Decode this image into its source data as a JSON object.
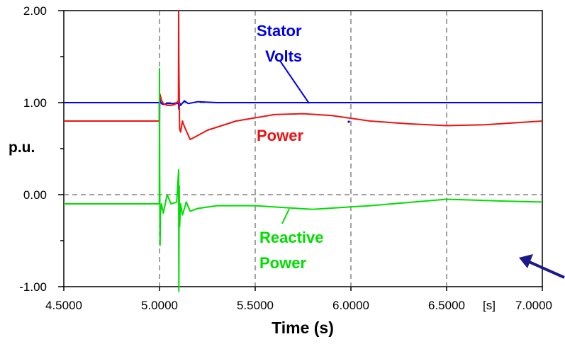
{
  "chart_data": {
    "type": "line",
    "title": "",
    "xlabel": "Time (s)",
    "ylabel": "p.u.",
    "x_unit_label": "[s]",
    "xlim": [
      4.5,
      7.0
    ],
    "ylim": [
      -1.0,
      2.0
    ],
    "grid": true,
    "x_ticks": [
      {
        "value": 4.5,
        "label": "4.5000"
      },
      {
        "value": 5.0,
        "label": "5.0000"
      },
      {
        "value": 5.5,
        "label": "5.5000"
      },
      {
        "value": 6.0,
        "label": "6.0000"
      },
      {
        "value": 6.5,
        "label": "6.5000"
      },
      {
        "value": 7.0,
        "label": "7.0000"
      }
    ],
    "y_ticks": [
      {
        "value": -1.0,
        "label": "-1.00"
      },
      {
        "value": 0.0,
        "label": "0.00"
      },
      {
        "value": 1.0,
        "label": "1.00"
      },
      {
        "value": 2.0,
        "label": "2.00"
      }
    ],
    "y_minor_ticks": [
      -0.5,
      0.5,
      1.5
    ],
    "series": [
      {
        "name": "Stator Volts",
        "color": "#0000ee",
        "x": [
          4.5,
          4.999,
          5.0,
          5.001,
          5.005,
          5.01,
          5.02,
          5.04,
          5.06,
          5.08,
          5.1,
          5.101,
          5.105,
          5.11,
          5.13,
          5.15,
          5.2,
          5.3,
          5.5,
          6.0,
          6.5,
          7.0
        ],
        "y": [
          1.0,
          1.0,
          0.75,
          1.04,
          1.01,
          0.99,
          0.98,
          0.99,
          0.99,
          0.99,
          0.99,
          0.93,
          1.0,
          0.97,
          1.02,
          0.99,
          1.01,
          1.0,
          1.0,
          1.0,
          1.0,
          1.0
        ]
      },
      {
        "name": "Power",
        "color": "#ee1111",
        "x": [
          4.5,
          4.999,
          5.0,
          5.003,
          5.01,
          5.02,
          5.04,
          5.06,
          5.08,
          5.099,
          5.1,
          5.101,
          5.105,
          5.11,
          5.12,
          5.13,
          5.16,
          5.18,
          5.25,
          5.4,
          5.6,
          5.75,
          5.9,
          6.1,
          6.3,
          6.5,
          6.7,
          6.85,
          7.0
        ],
        "y": [
          0.8,
          0.8,
          1.0,
          1.09,
          1.03,
          0.99,
          0.97,
          0.97,
          0.98,
          1.02,
          2.0,
          1.45,
          0.72,
          0.68,
          0.8,
          0.74,
          0.6,
          0.62,
          0.7,
          0.8,
          0.87,
          0.88,
          0.86,
          0.8,
          0.77,
          0.75,
          0.76,
          0.78,
          0.8
        ]
      },
      {
        "name": "Reactive Power",
        "color": "#00dd00",
        "x": [
          4.5,
          4.999,
          5.0,
          5.001,
          5.003,
          5.005,
          5.01,
          5.02,
          5.04,
          5.06,
          5.09,
          5.1,
          5.101,
          5.103,
          5.105,
          5.11,
          5.12,
          5.14,
          5.16,
          5.2,
          5.3,
          5.5,
          5.8,
          6.1,
          6.5,
          6.8,
          7.0
        ],
        "y": [
          -0.1,
          -0.1,
          1.37,
          0.2,
          -0.55,
          -0.2,
          -0.1,
          -0.2,
          0.0,
          -0.1,
          -0.08,
          0.27,
          -1.05,
          0.1,
          -0.35,
          -0.1,
          -0.22,
          -0.08,
          -0.18,
          -0.15,
          -0.12,
          -0.12,
          -0.16,
          -0.12,
          -0.05,
          -0.07,
          -0.08
        ]
      }
    ],
    "annotations": [
      {
        "lines": [
          "Stator",
          "Volts"
        ],
        "color": "#0000ee"
      },
      {
        "lines": [
          "Power"
        ],
        "color": "#ee1111"
      },
      {
        "lines": [
          "Reactive",
          "Power"
        ],
        "color": "#00dd00"
      }
    ],
    "pointer_arrow": {
      "color": "#1a1a8c"
    }
  }
}
